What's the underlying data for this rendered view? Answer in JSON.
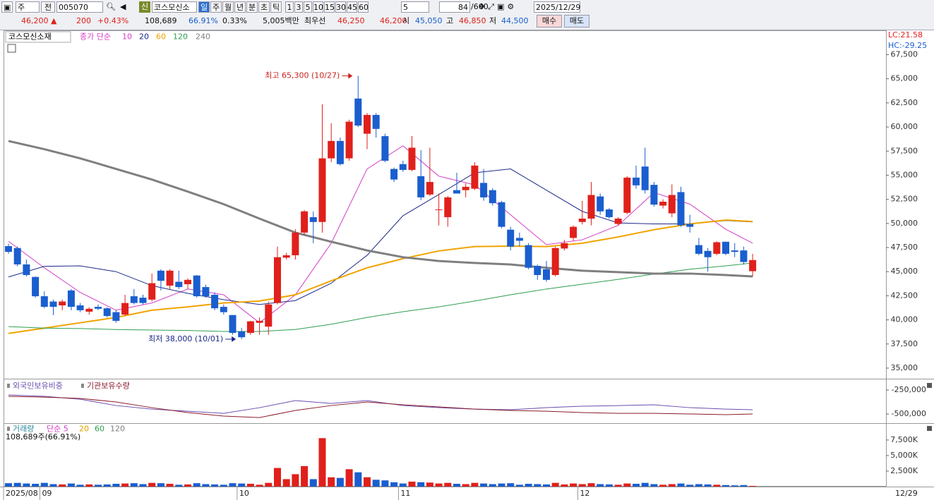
{
  "toolbar": {
    "market": "주",
    "prev": "전",
    "code": "005070",
    "credit": "신",
    "name": "코스모신소",
    "periods": [
      "일",
      "주",
      "월",
      "년",
      "분",
      "초",
      "틱"
    ],
    "minutes": [
      "1",
      "3",
      "5",
      "10",
      "15",
      "30",
      "45",
      "60"
    ],
    "interval": "5",
    "count": "84",
    "count_max": "/600",
    "date": "2025/12/29"
  },
  "quote": {
    "price": "46,200 ▲",
    "change": "200",
    "rate": "+0.43%",
    "volume": "108,689",
    "vol_ratio": "66.91%",
    "turnover_rate": "0.33%",
    "amount": "5,005백만",
    "best": "최우선",
    "ask": "46,250",
    "bid": "46,200",
    "open_label": "시",
    "open": "45,050",
    "high_label": "고",
    "high": "46,850",
    "low_label": "저",
    "low": "44,500",
    "buy": "매수",
    "sell": "매도"
  },
  "chart_data": {
    "type": "candlestick",
    "title": "코스모신소재",
    "ma_label": "종가 단순",
    "lc": "LC:21.58",
    "hc": "HC:-29.25",
    "up_color": "#e0201b",
    "down_color": "#1a5ecf",
    "dates": [
      "2025/08",
      null,
      null,
      null,
      "09",
      null,
      null,
      null,
      null,
      null,
      null,
      null,
      null,
      null,
      null,
      null,
      null,
      null,
      null,
      null,
      null,
      null,
      null,
      null,
      null,
      null,
      "10",
      null,
      null,
      null,
      null,
      null,
      null,
      null,
      null,
      null,
      null,
      null,
      null,
      null,
      null,
      null,
      null,
      null,
      "11",
      null,
      null,
      null,
      null,
      null,
      null,
      null,
      null,
      null,
      null,
      null,
      null,
      null,
      null,
      null,
      null,
      null,
      null,
      null,
      "12",
      null,
      null,
      null,
      null,
      null,
      null,
      null,
      null,
      null,
      null,
      null,
      null,
      null,
      null,
      null,
      null,
      null,
      null,
      null
    ],
    "cursor_date": "12/29",
    "open": [
      47650,
      47450,
      45750,
      44450,
      42450,
      41900,
      41500,
      43050,
      41500,
      40850,
      41350,
      41200,
      40800,
      40550,
      42450,
      42300,
      42100,
      45100,
      43550,
      43950,
      43700,
      44600,
      43400,
      42600,
      41350,
      40500,
      38800,
      38650,
      39700,
      39300,
      41750,
      46450,
      46700,
      49050,
      50650,
      50150,
      56750,
      58550,
      56750,
      62950,
      59300,
      61250,
      59050,
      55650,
      56150,
      55550,
      54900,
      53000,
      51450,
      50650,
      53450,
      53450,
      53600,
      54200,
      53450,
      52200,
      49350,
      48500,
      47750,
      45600,
      45250,
      44650,
      47400,
      48500,
      50150,
      50500,
      52800,
      51450,
      49950,
      51100,
      54750,
      55900,
      54000,
      51850,
      51050,
      53250,
      49950,
      47750,
      47150,
      46850,
      48100,
      47200,
      47200,
      45050
    ],
    "high": [
      47900,
      47600,
      46250,
      44500,
      42950,
      42100,
      42100,
      43200,
      41750,
      41300,
      41600,
      41300,
      41000,
      42600,
      43200,
      42600,
      44800,
      45250,
      45250,
      45100,
      44300,
      44650,
      43650,
      42850,
      41600,
      40500,
      39150,
      39900,
      40250,
      41900,
      47600,
      46950,
      49400,
      51400,
      51250,
      62350,
      60400,
      58900,
      60750,
      65300,
      61450,
      61450,
      59300,
      55800,
      56500,
      59050,
      57600,
      57850,
      53100,
      52850,
      55250,
      54150,
      56350,
      55650,
      53650,
      52350,
      49650,
      49050,
      47950,
      45750,
      46100,
      47600,
      48300,
      49800,
      52350,
      54300,
      53100,
      51600,
      50650,
      54900,
      56000,
      57850,
      54300,
      52500,
      54050,
      53800,
      50900,
      48500,
      47450,
      48150,
      48100,
      47950,
      47600,
      46850
    ],
    "low": [
      46850,
      45550,
      44500,
      42300,
      41200,
      40500,
      41000,
      41000,
      40800,
      40550,
      41000,
      40250,
      39700,
      40400,
      41600,
      41600,
      41900,
      43050,
      43200,
      43200,
      43200,
      42300,
      42300,
      41000,
      40550,
      38450,
      38000,
      38450,
      38450,
      38450,
      41600,
      46250,
      46250,
      48800,
      47950,
      49050,
      56350,
      56000,
      56500,
      60000,
      57700,
      58900,
      56350,
      54300,
      55350,
      55400,
      52400,
      52850,
      49800,
      49650,
      53100,
      52700,
      53450,
      52350,
      51850,
      49500,
      47200,
      47600,
      45250,
      44150,
      43950,
      44500,
      47200,
      48200,
      49900,
      49800,
      50900,
      50500,
      49800,
      50950,
      53600,
      53100,
      51750,
      51550,
      50650,
      49650,
      49050,
      46700,
      45000,
      46700,
      46700,
      46500,
      45750,
      44500
    ],
    "close": [
      47050,
      45750,
      44650,
      42450,
      41350,
      41350,
      41900,
      41350,
      41000,
      41150,
      41150,
      40400,
      39900,
      41750,
      41750,
      41750,
      43800,
      44050,
      45100,
      43400,
      44150,
      42450,
      42450,
      41200,
      40800,
      38650,
      38200,
      39850,
      39900,
      41600,
      46500,
      46700,
      49050,
      51250,
      50150,
      56750,
      58550,
      56150,
      60550,
      60150,
      61250,
      59800,
      56500,
      54550,
      55550,
      57850,
      52700,
      54300,
      51450,
      52700,
      53100,
      53800,
      56000,
      52700,
      52100,
      49650,
      47600,
      48200,
      45400,
      44650,
      44150,
      47450,
      47950,
      49650,
      50500,
      52950,
      51250,
      50650,
      50500,
      54750,
      53950,
      53450,
      51950,
      52250,
      52950,
      49800,
      49650,
      46850,
      46500,
      48050,
      46850,
      47050,
      46000,
      46200
    ],
    "ylim": [
      33900,
      69950
    ],
    "yticks": [
      {
        "value": 35000,
        "label": "35,000"
      },
      {
        "value": 37500,
        "label": "37,500"
      },
      {
        "value": 40000,
        "label": "40,000"
      },
      {
        "value": 42500,
        "label": "42,500"
      },
      {
        "value": 45000,
        "label": "45,000"
      },
      {
        "value": 47500,
        "label": "47,500"
      },
      {
        "value": 50000,
        "label": "50,000"
      },
      {
        "value": 52500,
        "label": "52,500"
      },
      {
        "value": 55000,
        "label": "55,000"
      },
      {
        "value": 57500,
        "label": "57,500"
      },
      {
        "value": 60000,
        "label": "60,000"
      },
      {
        "value": 62500,
        "label": "62,500"
      },
      {
        "value": 65000,
        "label": "65,000"
      },
      {
        "value": 67500,
        "label": "67,500"
      }
    ],
    "annotations": {
      "high": "최고 65,300 (10/27)",
      "low": "최저 38,000 (10/01)"
    },
    "ma_x": [
      0,
      4,
      8,
      12,
      16,
      20,
      24,
      28,
      32,
      36,
      40,
      44,
      48,
      52,
      56,
      60,
      64,
      68,
      72,
      76,
      80,
      83
    ],
    "ma_lines": [
      {
        "name": "10",
        "color": "#d23cc6",
        "width": 1,
        "values": [
          48150,
          45400,
          42850,
          41000,
          41750,
          43200,
          42600,
          39700,
          42600,
          47950,
          55650,
          58050,
          54900,
          54000,
          50900,
          47800,
          48300,
          49800,
          53200,
          52000,
          49400,
          47950
        ]
      },
      {
        "name": "20",
        "color": "#1c2a88",
        "width": 1,
        "values": [
          44450,
          45550,
          45600,
          45000,
          43550,
          42750,
          42100,
          41600,
          42000,
          43800,
          46700,
          50800,
          53000,
          55250,
          55650,
          53450,
          51250,
          50050,
          49950,
          49950,
          50300,
          50150
        ]
      },
      {
        "name": "60",
        "color": "#f0a400",
        "width": 2,
        "values": [
          38600,
          39150,
          39700,
          40250,
          41000,
          41350,
          41750,
          41950,
          42600,
          44050,
          45400,
          46350,
          47150,
          47600,
          47650,
          47600,
          47950,
          48600,
          49350,
          49950,
          50350,
          50200
        ]
      },
      {
        "name": "120",
        "color": "#2e9e50",
        "width": 1,
        "values": [
          39300,
          39150,
          39100,
          39000,
          38950,
          38900,
          38800,
          38800,
          39000,
          39550,
          40250,
          40850,
          41350,
          41950,
          42600,
          43200,
          43700,
          44200,
          44750,
          45250,
          45600,
          45900
        ]
      },
      {
        "name": "240",
        "color": "#7f7f7f",
        "width": 3,
        "values": [
          58550,
          57700,
          56750,
          55650,
          54550,
          53300,
          52000,
          50500,
          49050,
          48100,
          47200,
          46500,
          46100,
          45900,
          45750,
          45400,
          45100,
          44950,
          44800,
          44800,
          44650,
          44500
        ]
      }
    ],
    "holdings": {
      "ylim": [
        -595000,
        -140000
      ],
      "yticks": [
        {
          "value": -250000,
          "label": "-250,000"
        },
        {
          "value": -500000,
          "label": "-500,000"
        }
      ],
      "series": [
        {
          "name": "외국인보유비중",
          "color": "#6a4fb0",
          "values": [
            -301000,
            -316000,
            -346000,
            -412000,
            -449000,
            -471000,
            -493000,
            -434000,
            -360000,
            -390000,
            -360000,
            -412000,
            -434000,
            -449000,
            -456000,
            -434000,
            -419000,
            -412000,
            -404000,
            -434000,
            -449000,
            -456000
          ]
        },
        {
          "name": "기관보유수량",
          "color": "#8b1a2a",
          "values": [
            -316000,
            -324000,
            -338000,
            -375000,
            -434000,
            -485000,
            -522000,
            -537000,
            -463000,
            -412000,
            -375000,
            -404000,
            -426000,
            -449000,
            -463000,
            -471000,
            -485000,
            -493000,
            -493000,
            -500000,
            -507000,
            -500000
          ]
        }
      ]
    },
    "volume": {
      "title": "거래량",
      "ma_label": "단순 5",
      "ma_names": [
        {
          "name": "20",
          "color": "#e0a000"
        },
        {
          "name": "60",
          "color": "#2e9e50"
        },
        {
          "name": "120",
          "color": "#7f7f7f"
        }
      ],
      "ylim": [
        0,
        10100
      ],
      "yticks": [
        {
          "value": 2500,
          "label": "2,500K"
        },
        {
          "value": 5000,
          "label": "5,000K"
        },
        {
          "value": 7500,
          "label": "7,500K"
        }
      ],
      "values": [
        550,
        600,
        500,
        450,
        600,
        400,
        350,
        500,
        300,
        350,
        300,
        350,
        450,
        500,
        550,
        400,
        600,
        550,
        450,
        300,
        350,
        550,
        400,
        350,
        300,
        550,
        500,
        450,
        300,
        600,
        3000,
        1200,
        2000,
        3300,
        1200,
        7800,
        1500,
        1400,
        2800,
        2300,
        1500,
        1100,
        1000,
        700,
        500,
        800,
        700,
        650,
        500,
        600,
        450,
        400,
        600,
        500,
        400,
        500,
        550,
        300,
        450,
        400,
        350,
        600,
        350,
        500,
        400,
        550,
        400,
        350,
        300,
        500,
        450,
        600,
        400,
        300,
        400,
        500,
        300,
        400,
        350,
        300,
        250,
        200,
        250,
        108.689
      ],
      "last_label": "108,689주(66.91%)"
    }
  }
}
